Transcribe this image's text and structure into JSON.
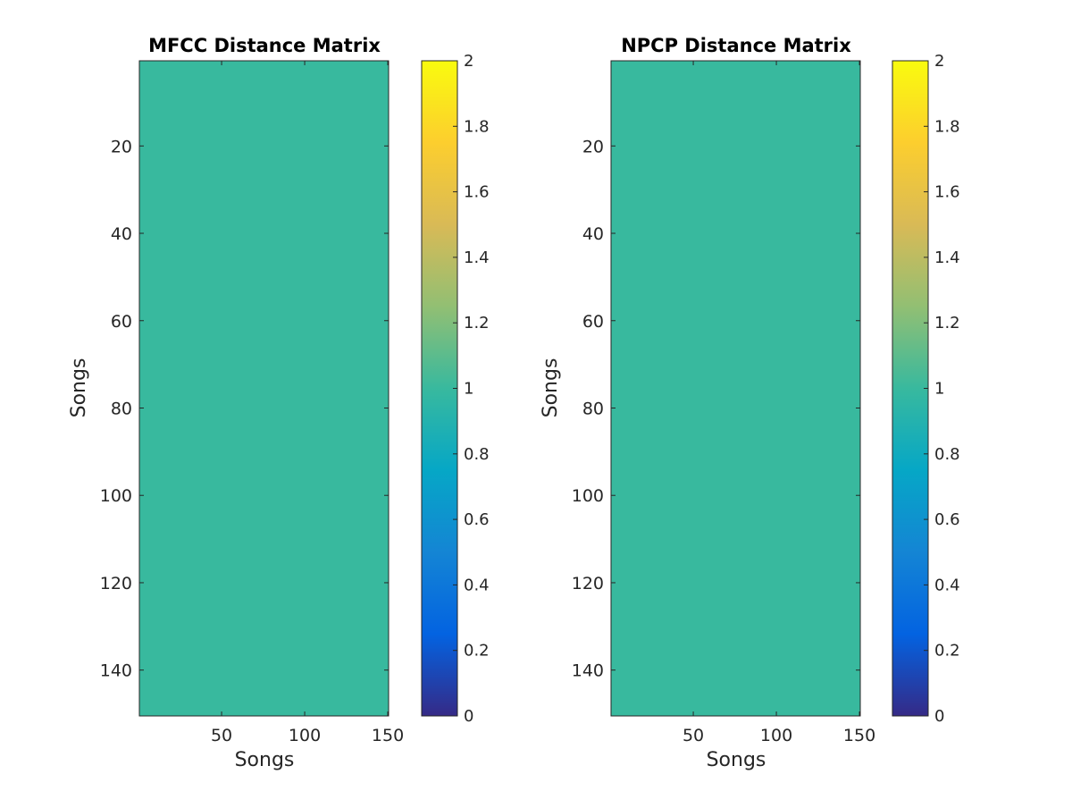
{
  "chart_data": [
    {
      "type": "heatmap",
      "title": "MFCC Distance Matrix",
      "xlabel": "Songs",
      "ylabel": "Songs",
      "xlim": [
        0.5,
        150.5
      ],
      "ylim": [
        0.5,
        150.5
      ],
      "y_reversed": true,
      "xticks": [
        50,
        100,
        150
      ],
      "yticks": [
        20,
        40,
        60,
        80,
        100,
        120,
        140
      ],
      "matrix": {
        "rows": 150,
        "cols": 150,
        "uniform_value": 1
      },
      "colorbar": {
        "min": 0,
        "max": 2,
        "ticks": [
          0,
          0.2,
          0.4,
          0.6,
          0.8,
          1,
          1.2,
          1.4,
          1.6,
          1.8,
          2
        ],
        "colormap": "parula",
        "placement": "right"
      }
    },
    {
      "type": "heatmap",
      "title": "NPCP Distance Matrix",
      "xlabel": "Songs",
      "ylabel": "Songs",
      "xlim": [
        0.5,
        150.5
      ],
      "ylim": [
        0.5,
        150.5
      ],
      "y_reversed": true,
      "xticks": [
        50,
        100,
        150
      ],
      "yticks": [
        20,
        40,
        60,
        80,
        100,
        120,
        140
      ],
      "matrix": {
        "rows": 150,
        "cols": 150,
        "uniform_value": 1
      },
      "colorbar": {
        "min": 0,
        "max": 2,
        "ticks": [
          0,
          0.2,
          0.4,
          0.6,
          0.8,
          1,
          1.2,
          1.4,
          1.6,
          1.8,
          2
        ],
        "colormap": "parula",
        "placement": "right"
      }
    }
  ],
  "colors": {
    "colormap_stops": [
      "#352a87",
      "#0363e1",
      "#1485d4",
      "#06a7c6",
      "#38b99e",
      "#92bf73",
      "#d9ba56",
      "#fcce2e",
      "#f9fb0e"
    ],
    "axis_line": "#262626",
    "title_text": "#000000",
    "background": "#ffffff"
  }
}
